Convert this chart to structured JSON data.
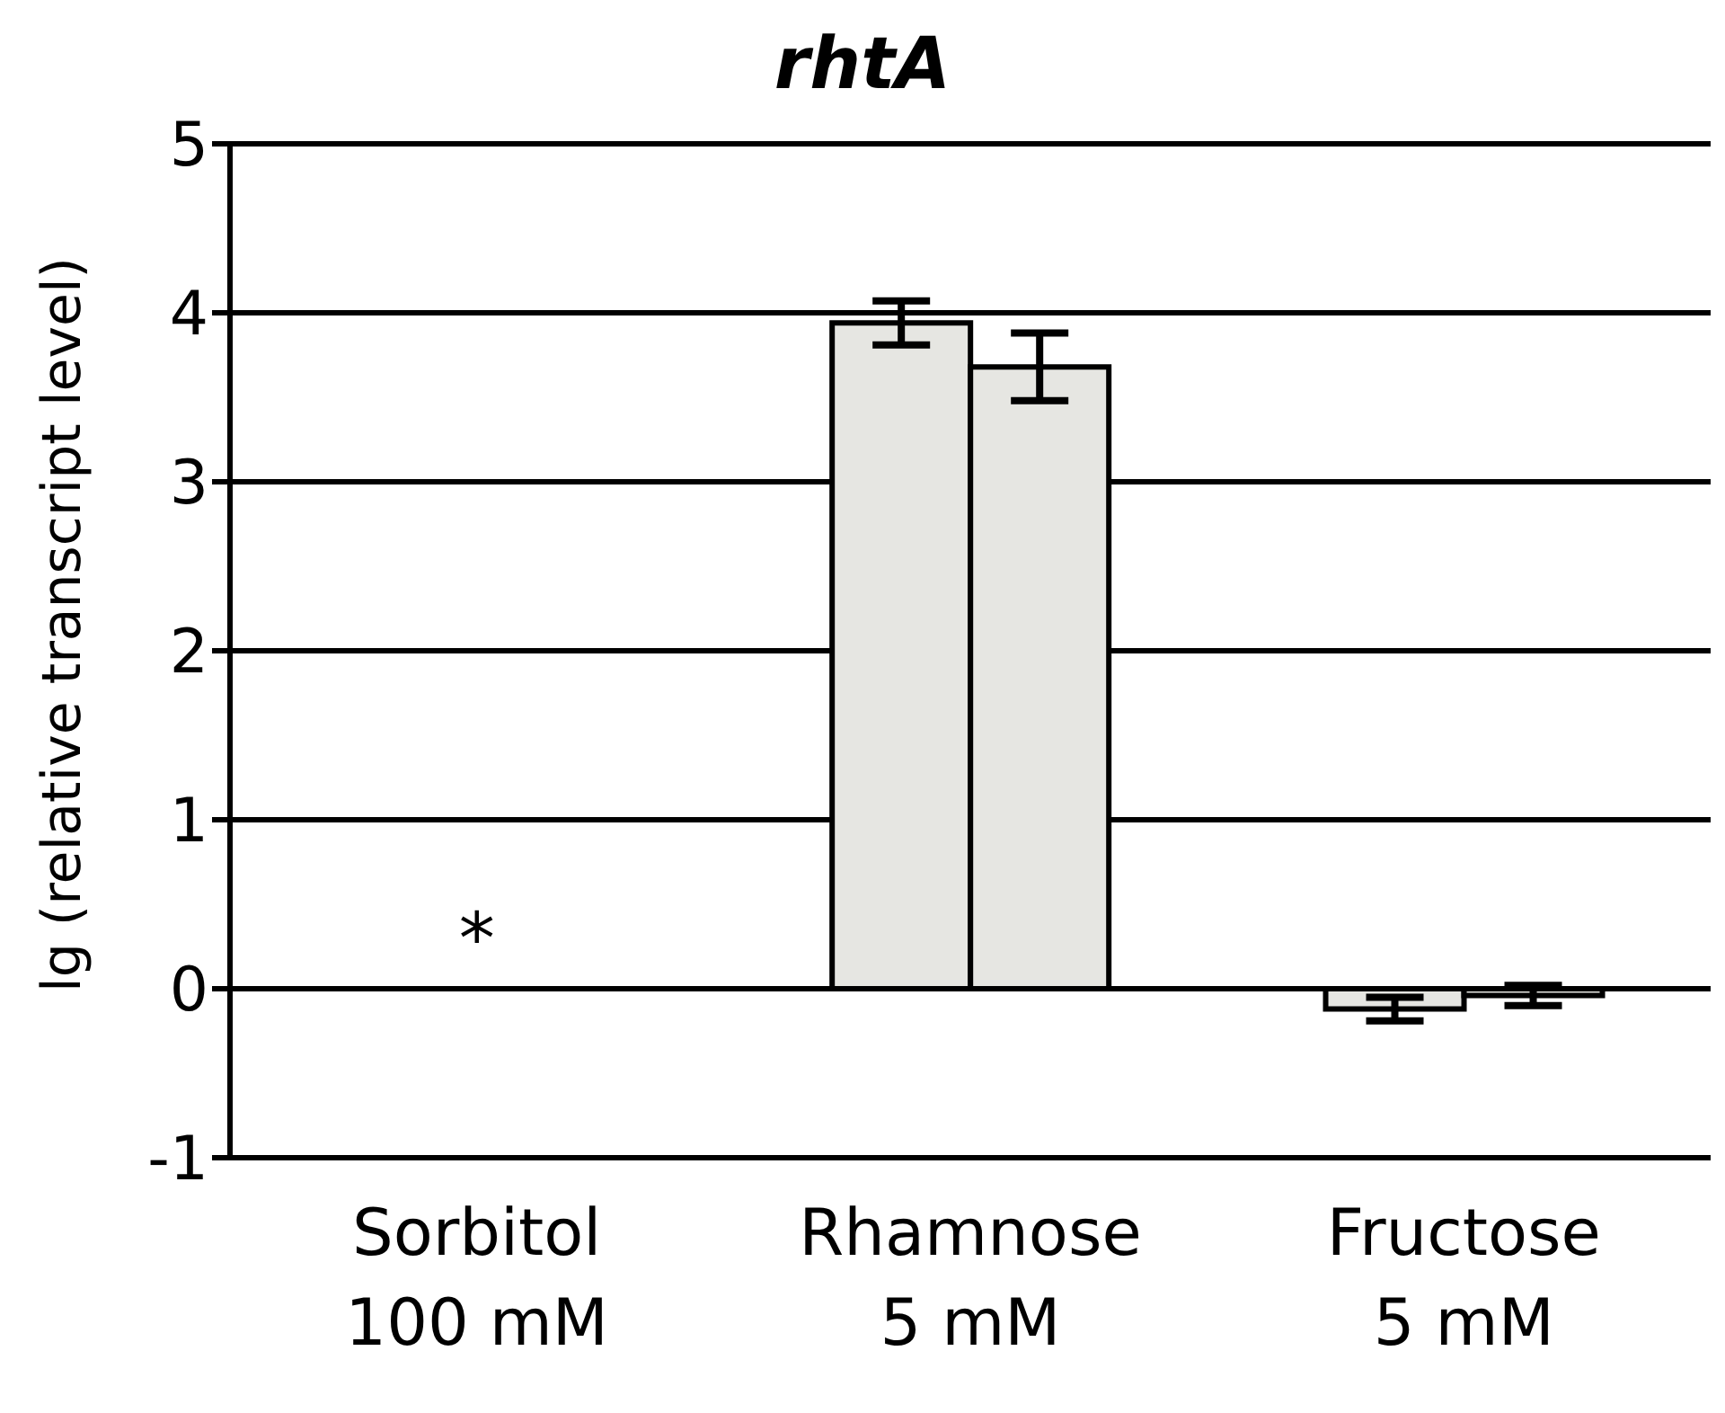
{
  "chart_data": {
    "type": "bar",
    "title": "rhtA",
    "ylabel": "lg (relative transcript level)",
    "categories": [
      "Sorbitol\n100 mM",
      "Rhamnose\n5 mM",
      "Fructose\n5 mM"
    ],
    "series": [
      {
        "color": "#e6e6e2",
        "values": [
          0,
          3.94,
          -0.12
        ],
        "errors": [
          null,
          0.13,
          0.07
        ]
      },
      {
        "color": "#e6e6e2",
        "values": [
          0,
          3.68,
          -0.04
        ],
        "errors": [
          null,
          0.2,
          0.06
        ]
      }
    ],
    "ylim": [
      -1,
      5
    ],
    "yticks": [
      -1,
      0,
      1,
      2,
      3,
      4,
      5
    ],
    "grid": "y",
    "legend": false,
    "annotations": [
      {
        "text": "*",
        "x": "Sorbitol\n100 mM",
        "y": 0
      }
    ]
  }
}
